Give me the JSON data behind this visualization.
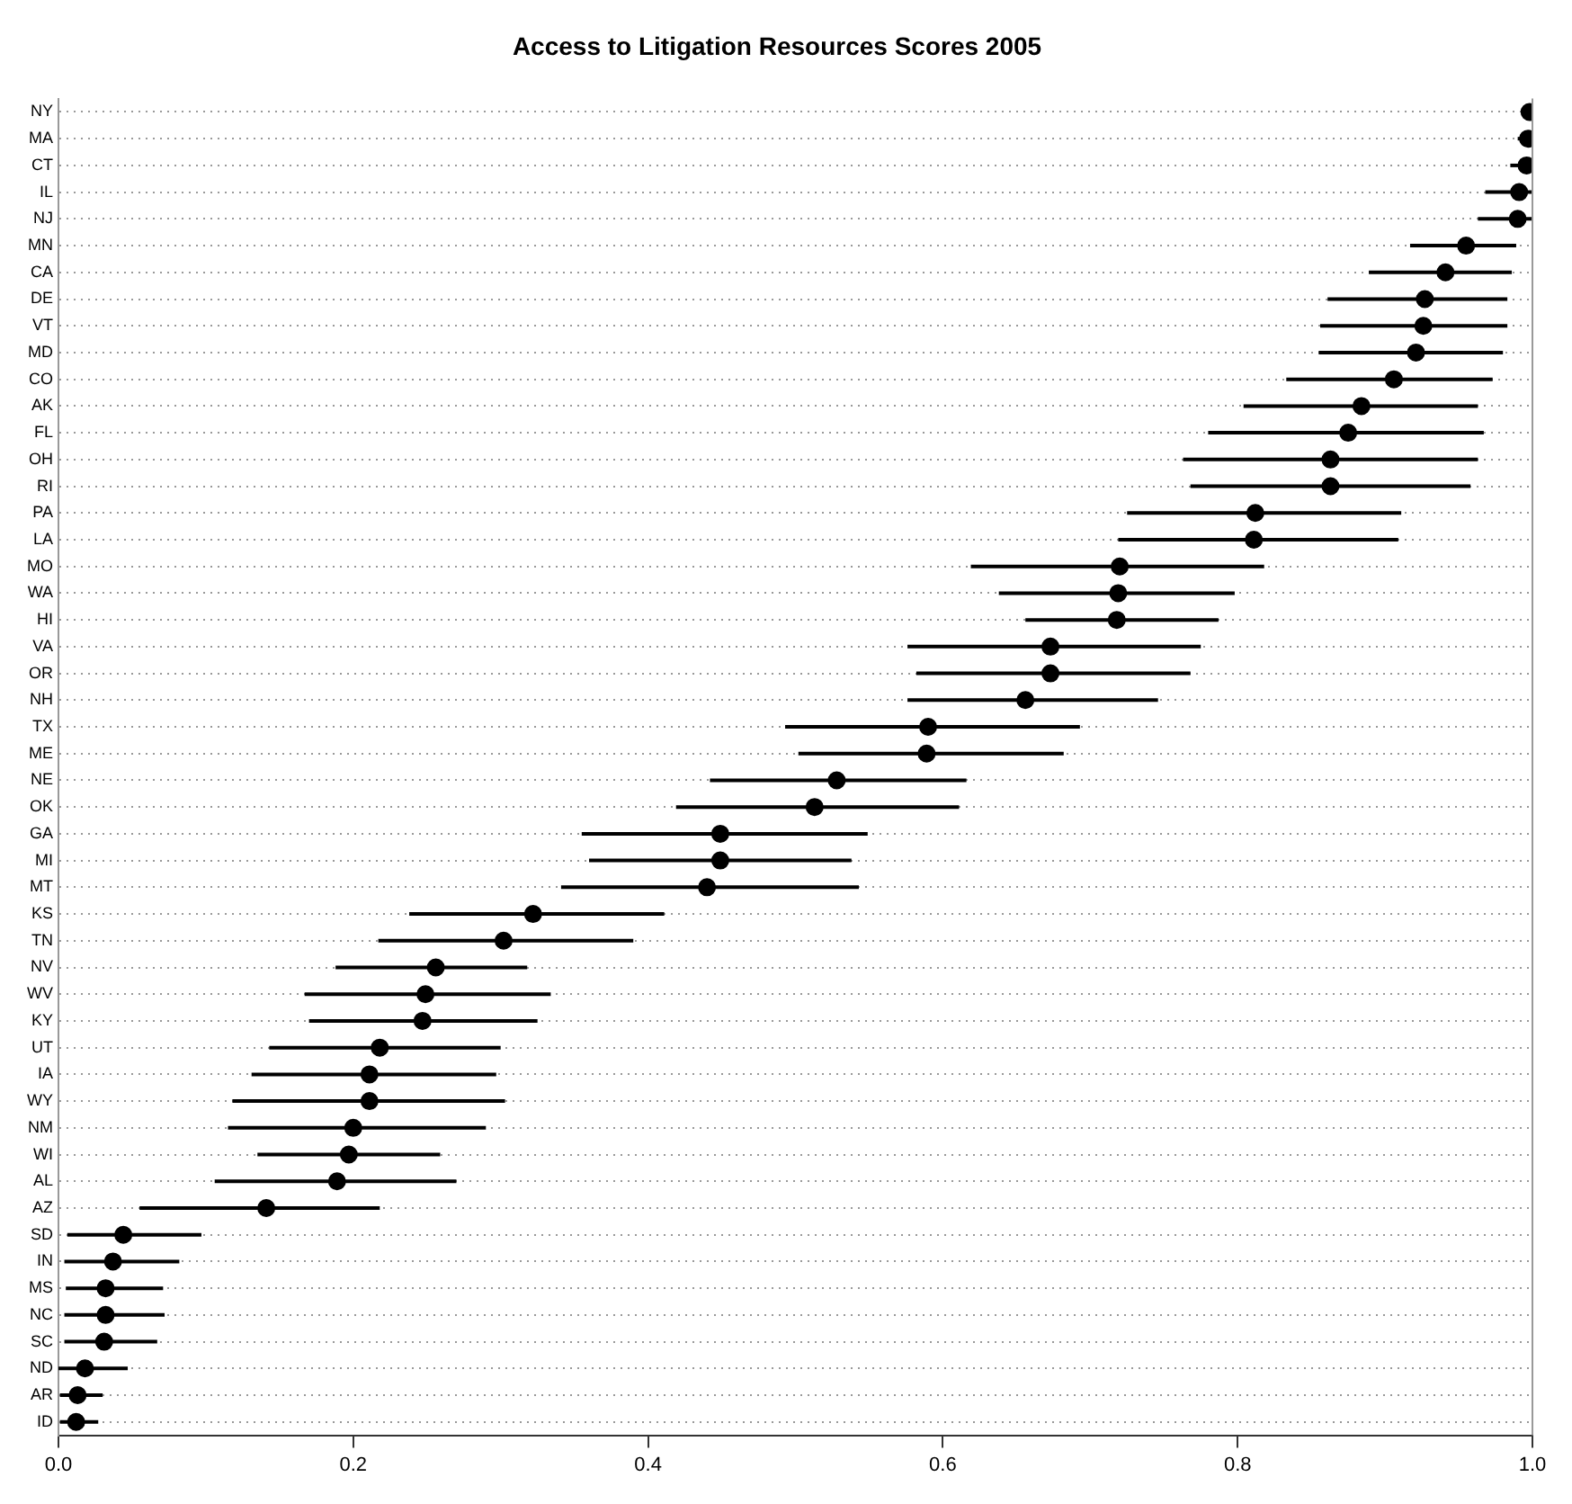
{
  "chart_data": {
    "type": "scatter",
    "title": "Access to Litigation Resources Scores 2005",
    "categories": [
      "NY",
      "MA",
      "CT",
      "IL",
      "NJ",
      "MN",
      "CA",
      "DE",
      "VT",
      "MD",
      "CO",
      "AK",
      "FL",
      "OH",
      "RI",
      "PA",
      "LA",
      "MO",
      "WA",
      "HI",
      "VA",
      "OR",
      "NH",
      "TX",
      "ME",
      "NE",
      "OK",
      "GA",
      "MI",
      "MT",
      "KS",
      "TN",
      "NV",
      "WV",
      "KY",
      "UT",
      "IA",
      "WY",
      "NM",
      "WI",
      "AL",
      "AZ",
      "SD",
      "IN",
      "MS",
      "NC",
      "SC",
      "ND",
      "AR",
      "ID"
    ],
    "values": [
      0.998,
      0.997,
      0.996,
      0.991,
      0.99,
      0.955,
      0.941,
      0.927,
      0.926,
      0.921,
      0.906,
      0.884,
      0.875,
      0.863,
      0.863,
      0.812,
      0.811,
      0.72,
      0.719,
      0.718,
      0.673,
      0.673,
      0.656,
      0.59,
      0.589,
      0.528,
      0.513,
      0.449,
      0.449,
      0.44,
      0.322,
      0.302,
      0.256,
      0.249,
      0.247,
      0.218,
      0.211,
      0.211,
      0.2,
      0.197,
      0.189,
      0.141,
      0.044,
      0.037,
      0.032,
      0.032,
      0.031,
      0.018,
      0.013,
      0.012
    ],
    "errors": [
      [
        0.995,
        1.0
      ],
      [
        0.99,
        1.0
      ],
      [
        0.985,
        1.0
      ],
      [
        0.968,
        1.0
      ],
      [
        0.963,
        1.0
      ],
      [
        0.917,
        0.989
      ],
      [
        0.889,
        0.986
      ],
      [
        0.861,
        0.983
      ],
      [
        0.856,
        0.983
      ],
      [
        0.855,
        0.98
      ],
      [
        0.833,
        0.973
      ],
      [
        0.804,
        0.963
      ],
      [
        0.78,
        0.967
      ],
      [
        0.763,
        0.963
      ],
      [
        0.768,
        0.958
      ],
      [
        0.725,
        0.911
      ],
      [
        0.719,
        0.909
      ],
      [
        0.619,
        0.818
      ],
      [
        0.638,
        0.798
      ],
      [
        0.656,
        0.787
      ],
      [
        0.576,
        0.775
      ],
      [
        0.582,
        0.768
      ],
      [
        0.576,
        0.746
      ],
      [
        0.493,
        0.693
      ],
      [
        0.502,
        0.682
      ],
      [
        0.442,
        0.616
      ],
      [
        0.419,
        0.611
      ],
      [
        0.355,
        0.549
      ],
      [
        0.36,
        0.538
      ],
      [
        0.341,
        0.543
      ],
      [
        0.238,
        0.411
      ],
      [
        0.217,
        0.39
      ],
      [
        0.188,
        0.318
      ],
      [
        0.167,
        0.334
      ],
      [
        0.17,
        0.325
      ],
      [
        0.143,
        0.3
      ],
      [
        0.131,
        0.297
      ],
      [
        0.118,
        0.303
      ],
      [
        0.115,
        0.29
      ],
      [
        0.135,
        0.259
      ],
      [
        0.106,
        0.27
      ],
      [
        0.055,
        0.218
      ],
      [
        0.006,
        0.097
      ],
      [
        0.004,
        0.082
      ],
      [
        0.005,
        0.071
      ],
      [
        0.004,
        0.072
      ],
      [
        0.004,
        0.067
      ],
      [
        0.0,
        0.047
      ],
      [
        0.001,
        0.03
      ],
      [
        0.001,
        0.027
      ]
    ],
    "color": "#000000",
    "marker": "circle",
    "grid": "y",
    "orientation": "horizontal",
    "xlim": [
      0,
      1
    ],
    "xticks": [
      {
        "value": 0,
        "label": "0.0"
      },
      0.2,
      0.4,
      0.6,
      0.8,
      {
        "value": 1,
        "label": "1.0"
      }
    ]
  }
}
